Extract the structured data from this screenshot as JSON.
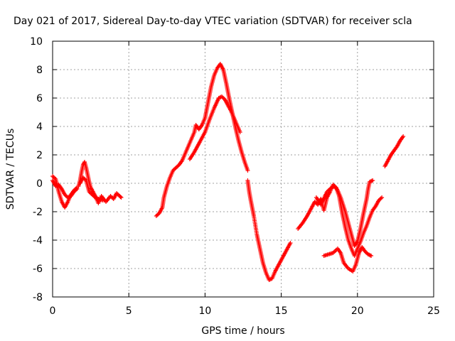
{
  "chart_data": {
    "type": "scatter",
    "title": "Day 021 of 2017, Sidereal Day-to-day VTEC variation (SDTVAR) for receiver scla",
    "xlabel": "GPS time / hours",
    "ylabel": "SDTVAR / TECUs",
    "xlim": [
      0,
      25
    ],
    "ylim": [
      -8,
      10
    ],
    "xticks": [
      0,
      5,
      10,
      15,
      20,
      25
    ],
    "yticks": [
      -8,
      -6,
      -4,
      -2,
      0,
      2,
      4,
      6,
      8,
      10
    ],
    "grid": true,
    "marker": "+",
    "color": "#ff0000",
    "segments": [
      [
        [
          0.0,
          0.5
        ],
        [
          0.2,
          0.3
        ],
        [
          0.4,
          -0.6
        ],
        [
          0.6,
          -1.3
        ],
        [
          0.8,
          -1.7
        ],
        [
          1.0,
          -1.3
        ],
        [
          1.2,
          -0.8
        ],
        [
          1.4,
          -0.5
        ],
        [
          1.6,
          -0.3
        ]
      ],
      [
        [
          0.0,
          0.2
        ],
        [
          0.2,
          -0.2
        ],
        [
          0.4,
          -0.1
        ],
        [
          0.6,
          -0.4
        ],
        [
          0.8,
          -0.8
        ],
        [
          1.0,
          -1.0
        ],
        [
          1.2,
          -0.9
        ],
        [
          1.4,
          -0.6
        ],
        [
          1.6,
          -0.4
        ]
      ],
      [
        [
          1.7,
          -0.2
        ],
        [
          1.8,
          0.2
        ],
        [
          1.9,
          0.8
        ],
        [
          2.0,
          1.3
        ],
        [
          2.1,
          1.5
        ],
        [
          2.2,
          1.1
        ],
        [
          2.3,
          0.6
        ],
        [
          2.4,
          0.1
        ],
        [
          2.5,
          -0.3
        ],
        [
          2.6,
          -0.5
        ],
        [
          2.8,
          -0.9
        ],
        [
          3.0,
          -1.4
        ],
        [
          3.2,
          -0.9
        ],
        [
          3.5,
          -1.3
        ],
        [
          3.8,
          -0.9
        ],
        [
          4.0,
          -1.1
        ],
        [
          4.2,
          -0.7
        ],
        [
          4.4,
          -0.9
        ],
        [
          4.5,
          -1.0
        ]
      ],
      [
        [
          1.8,
          0.0
        ],
        [
          2.0,
          0.4
        ],
        [
          2.2,
          0.2
        ],
        [
          2.4,
          -0.6
        ],
        [
          2.6,
          -0.8
        ],
        [
          2.8,
          -1.0
        ],
        [
          3.0,
          -1.1
        ],
        [
          3.3,
          -1.2
        ]
      ],
      [
        [
          6.8,
          -2.3
        ],
        [
          7.0,
          -2.1
        ],
        [
          7.2,
          -1.7
        ],
        [
          7.3,
          -1.0
        ],
        [
          7.5,
          -0.2
        ],
        [
          7.7,
          0.4
        ],
        [
          7.9,
          0.9
        ],
        [
          8.1,
          1.1
        ],
        [
          8.3,
          1.3
        ],
        [
          8.5,
          1.6
        ],
        [
          8.7,
          2.1
        ],
        [
          8.9,
          2.6
        ],
        [
          9.1,
          3.1
        ],
        [
          9.3,
          3.6
        ],
        [
          9.4,
          4.1
        ],
        [
          9.6,
          3.8
        ],
        [
          9.8,
          4.1
        ],
        [
          10.0,
          4.6
        ],
        [
          10.2,
          5.7
        ],
        [
          10.4,
          6.8
        ],
        [
          10.6,
          7.6
        ],
        [
          10.8,
          8.1
        ],
        [
          11.0,
          8.4
        ],
        [
          11.2,
          8.0
        ],
        [
          11.4,
          7.0
        ],
        [
          11.6,
          5.9
        ],
        [
          11.8,
          4.9
        ],
        [
          12.0,
          3.9
        ],
        [
          12.2,
          3.0
        ],
        [
          12.4,
          2.2
        ],
        [
          12.6,
          1.5
        ],
        [
          12.8,
          0.9
        ]
      ],
      [
        [
          9.0,
          1.7
        ],
        [
          9.3,
          2.2
        ],
        [
          9.6,
          2.8
        ],
        [
          10.0,
          3.6
        ],
        [
          10.3,
          4.5
        ],
        [
          10.6,
          5.3
        ],
        [
          10.9,
          6.0
        ],
        [
          11.1,
          6.1
        ],
        [
          11.3,
          5.9
        ],
        [
          11.5,
          5.5
        ],
        [
          11.7,
          5.1
        ],
        [
          11.9,
          4.6
        ],
        [
          12.1,
          4.1
        ],
        [
          12.3,
          3.6
        ]
      ],
      [
        [
          12.8,
          0.2
        ],
        [
          12.9,
          -0.6
        ],
        [
          13.0,
          -1.2
        ],
        [
          13.2,
          -2.3
        ],
        [
          13.4,
          -3.6
        ],
        [
          13.6,
          -4.6
        ],
        [
          13.8,
          -5.6
        ],
        [
          14.0,
          -6.3
        ],
        [
          14.2,
          -6.8
        ],
        [
          14.4,
          -6.7
        ],
        [
          14.6,
          -6.2
        ],
        [
          14.8,
          -5.8
        ],
        [
          15.0,
          -5.4
        ],
        [
          15.2,
          -5.0
        ],
        [
          15.4,
          -4.6
        ],
        [
          15.6,
          -4.2
        ]
      ],
      [
        [
          16.1,
          -3.2
        ],
        [
          16.4,
          -2.8
        ],
        [
          16.7,
          -2.3
        ],
        [
          17.0,
          -1.7
        ],
        [
          17.2,
          -1.3
        ],
        [
          17.4,
          -1.5
        ],
        [
          17.6,
          -1.1
        ],
        [
          17.8,
          -1.9
        ],
        [
          18.0,
          -1.0
        ],
        [
          18.2,
          -0.6
        ],
        [
          18.4,
          -0.1
        ],
        [
          18.6,
          -0.3
        ],
        [
          18.8,
          -0.9
        ],
        [
          19.0,
          -2.1
        ],
        [
          19.2,
          -3.1
        ],
        [
          19.4,
          -4.0
        ],
        [
          19.6,
          -4.6
        ],
        [
          19.8,
          -5.1
        ],
        [
          20.0,
          -4.6
        ],
        [
          20.2,
          -4.1
        ],
        [
          20.4,
          -3.5
        ],
        [
          20.6,
          -3.0
        ],
        [
          20.8,
          -2.4
        ],
        [
          21.0,
          -1.9
        ],
        [
          21.2,
          -1.6
        ],
        [
          21.4,
          -1.2
        ],
        [
          21.6,
          -1.0
        ]
      ],
      [
        [
          17.3,
          -1.0
        ],
        [
          17.6,
          -1.5
        ],
        [
          18.0,
          -0.6
        ],
        [
          18.3,
          -0.3
        ],
        [
          18.5,
          -0.2
        ],
        [
          18.7,
          -0.5
        ],
        [
          18.9,
          -1.0
        ],
        [
          19.2,
          -2.0
        ],
        [
          19.4,
          -2.8
        ],
        [
          19.6,
          -3.6
        ],
        [
          19.8,
          -4.4
        ],
        [
          20.0,
          -4.1
        ],
        [
          20.2,
          -3.2
        ],
        [
          20.4,
          -2.1
        ],
        [
          20.6,
          -1.1
        ],
        [
          20.7,
          -0.4
        ],
        [
          20.8,
          0.1
        ],
        [
          21.0,
          0.2
        ]
      ],
      [
        [
          17.8,
          -5.1
        ],
        [
          18.1,
          -5.0
        ],
        [
          18.4,
          -4.9
        ],
        [
          18.7,
          -4.6
        ],
        [
          18.9,
          -4.9
        ],
        [
          19.1,
          -5.6
        ],
        [
          19.4,
          -6.0
        ],
        [
          19.7,
          -6.2
        ],
        [
          19.9,
          -5.7
        ],
        [
          20.1,
          -4.9
        ],
        [
          20.3,
          -4.5
        ],
        [
          20.5,
          -4.8
        ],
        [
          20.7,
          -5.0
        ],
        [
          20.9,
          -5.1
        ]
      ],
      [
        [
          21.8,
          1.2
        ],
        [
          22.0,
          1.6
        ],
        [
          22.2,
          2.0
        ],
        [
          22.4,
          2.3
        ],
        [
          22.6,
          2.6
        ],
        [
          22.8,
          3.0
        ],
        [
          23.0,
          3.3
        ]
      ]
    ]
  }
}
